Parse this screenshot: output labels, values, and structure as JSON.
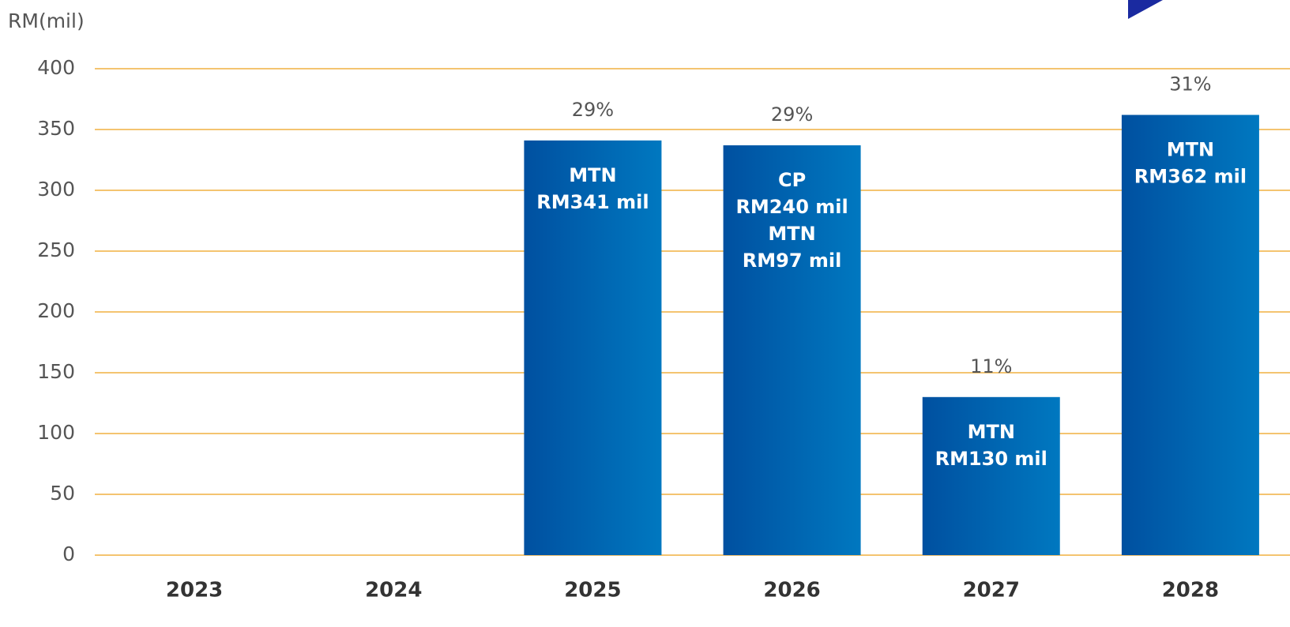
{
  "chart_data": {
    "type": "bar",
    "y_label": "RM(mil)",
    "categories": [
      "2023",
      "2024",
      "2025",
      "2026",
      "2027",
      "2028"
    ],
    "values": [
      null,
      null,
      341,
      337,
      130,
      362
    ],
    "percent_labels": [
      null,
      null,
      "29%",
      "29%",
      "11%",
      "31%"
    ],
    "bar_labels": [
      null,
      null,
      [
        "MTN",
        "RM341 mil"
      ],
      [
        "CP",
        "RM240 mil",
        "MTN",
        "RM97 mil"
      ],
      [
        "MTN",
        "RM130 mil"
      ],
      [
        "MTN",
        "RM362 mil"
      ]
    ],
    "color": [
      "#0050a0",
      "#0078c0"
    ],
    "ylim": [
      0,
      400
    ],
    "yticks": [
      0,
      50,
      100,
      150,
      200,
      250,
      300,
      350,
      400
    ],
    "grid": true
  }
}
